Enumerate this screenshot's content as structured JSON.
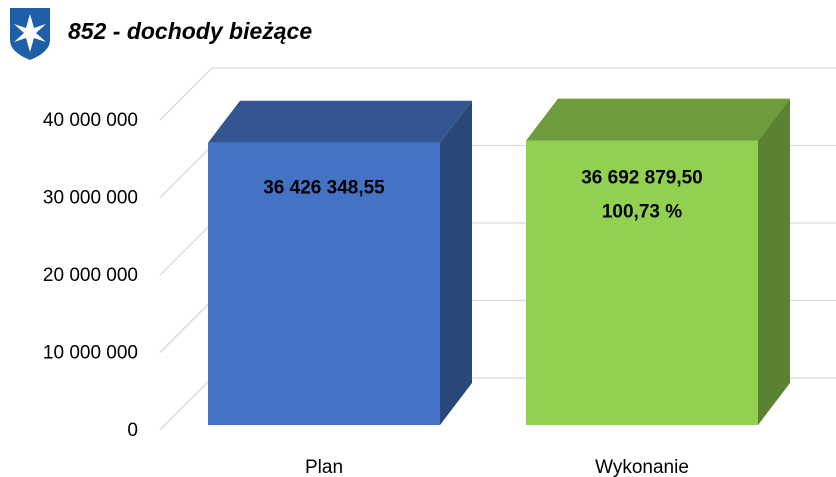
{
  "chart_data": {
    "type": "bar3d",
    "title": "852 - dochody bieżące",
    "categories": [
      "Plan",
      "Wykonanie"
    ],
    "values": [
      36426348.55,
      36692879.5
    ],
    "value_labels": [
      "36 426 348,55",
      "36 692 879,50"
    ],
    "annotation": "100,73 %",
    "colors": [
      "#4472c4",
      "#92d050"
    ],
    "ylim": [
      0,
      40000000
    ],
    "yticks": [
      {
        "value": 0,
        "label": "0"
      },
      {
        "value": 10000000,
        "label": "10 000 000"
      },
      {
        "value": 20000000,
        "label": "20 000 000"
      },
      {
        "value": 30000000,
        "label": "30 000 000"
      },
      {
        "value": 40000000,
        "label": "40 000 000"
      }
    ],
    "grid": true
  }
}
